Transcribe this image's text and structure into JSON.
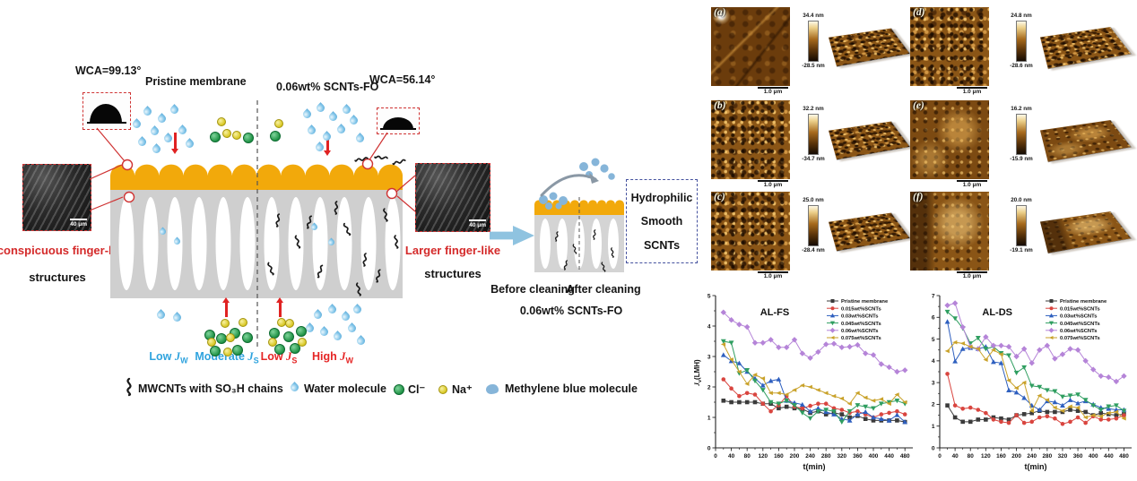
{
  "diagram": {
    "wca_left": "WCA=99.13°",
    "wca_right": "WCA=56.14°",
    "pristine_label": "Pristine membrane",
    "modified_label": "0.06wt% SCNTs-FO",
    "left_inset_scale": "40 μm",
    "right_inset_scale": "40 μm",
    "left_structure_line1": "Inconspicuous finger-like",
    "left_structure_line2": "structures",
    "right_structure_line1": "Larger finger-like",
    "right_structure_line2": "structures",
    "flux_labels": [
      {
        "main": "Low ",
        "var": "J",
        "sub": "W"
      },
      {
        "main": "Moderate ",
        "var": "J",
        "sub": "S"
      },
      {
        "main": "Low ",
        "var": "J",
        "sub": "S"
      },
      {
        "main": "High ",
        "var": "J",
        "sub": "W"
      }
    ],
    "molecule_legend": [
      {
        "label": "MWCNTs with SO₃H chains"
      },
      {
        "label": "Water molecule"
      },
      {
        "label": "Cl⁻"
      },
      {
        "label": "Na⁺"
      },
      {
        "label": "Methylene blue molecule"
      }
    ],
    "cleaning": {
      "before": "Before cleaning",
      "after": "After cleaning",
      "membrane_label": "0.06wt% SCNTs-FO",
      "box_lines": [
        "Hydrophilic",
        "Smooth",
        "SCNTs"
      ]
    }
  },
  "afm_panels": [
    {
      "id": "(a)",
      "zmax": "34.4 nm",
      "zmin": "-28.5 nm",
      "scalebar": "1.0 μm"
    },
    {
      "id": "(b)",
      "zmax": "32.2 nm",
      "zmin": "-34.7 nm",
      "scalebar": "1.0 μm"
    },
    {
      "id": "(c)",
      "zmax": "25.0 nm",
      "zmin": "-28.4 nm",
      "scalebar": "1.0 μm"
    },
    {
      "id": "(d)",
      "zmax": "24.8 nm",
      "zmin": "-28.6 nm",
      "scalebar": "1.0 μm"
    },
    {
      "id": "(e)",
      "zmax": "16.2 nm",
      "zmin": "-15.9 nm",
      "scalebar": "1.0 μm"
    },
    {
      "id": "(f)",
      "zmax": "20.0 nm",
      "zmin": "-19.1 nm",
      "scalebar": "1.0 μm"
    }
  ],
  "chart_data": [
    {
      "type": "line",
      "title": "AL-FS",
      "xlabel": "t(min)",
      "ylabel": "Jv(LMH)",
      "ylabel_parts": {
        "lead": "J",
        "sub": "v",
        "rest": "(LMH)"
      },
      "xlim": [
        0,
        500
      ],
      "ylim": [
        0,
        5
      ],
      "yticks": [
        0,
        1,
        2,
        3,
        4,
        5
      ],
      "xticks": [
        0,
        40,
        80,
        120,
        160,
        200,
        240,
        280,
        320,
        360,
        400,
        440,
        480
      ],
      "grid": false,
      "legend_position": "top-right",
      "x": [
        20,
        40,
        60,
        80,
        100,
        120,
        140,
        160,
        180,
        200,
        220,
        240,
        260,
        280,
        300,
        320,
        340,
        360,
        380,
        400,
        420,
        440,
        460,
        480
      ],
      "series": [
        {
          "name": "Pristine membrane",
          "color": "#3b3b3b",
          "marker": "square",
          "values": [
            1.55,
            1.5,
            1.5,
            1.5,
            1.5,
            1.45,
            1.45,
            1.3,
            1.35,
            1.3,
            1.28,
            1.15,
            1.2,
            1.1,
            1.15,
            1.1,
            1.0,
            1.05,
            0.95,
            0.9,
            0.9,
            0.9,
            0.9,
            0.85
          ]
        },
        {
          "name": "0.015wt%SCNTs",
          "color": "#d9453f",
          "marker": "circle",
          "values": [
            2.25,
            1.95,
            1.7,
            1.8,
            1.75,
            1.45,
            1.2,
            1.4,
            1.7,
            1.35,
            1.3,
            1.38,
            1.45,
            1.45,
            1.3,
            1.25,
            1.15,
            1.2,
            1.1,
            1.0,
            1.1,
            1.15,
            1.2,
            1.1
          ]
        },
        {
          "name": "0.03wt%SCNTs",
          "color": "#2e5fbf",
          "marker": "triangle-up",
          "values": [
            3.05,
            2.85,
            2.78,
            2.5,
            2.28,
            2.05,
            2.2,
            2.25,
            1.55,
            1.48,
            1.42,
            1.2,
            1.3,
            1.18,
            1.1,
            0.95,
            0.9,
            1.1,
            1.18,
            1.0,
            0.95,
            0.9,
            1.08,
            0.85
          ]
        },
        {
          "name": "0.045wt%SCNTs",
          "color": "#2f9e60",
          "marker": "triangle-down",
          "values": [
            3.5,
            3.45,
            2.45,
            2.55,
            2.2,
            1.9,
            1.5,
            1.45,
            1.55,
            1.4,
            1.15,
            0.97,
            1.2,
            1.25,
            1.2,
            0.85,
            1.2,
            1.4,
            1.35,
            1.3,
            1.45,
            1.5,
            1.55,
            1.45
          ]
        },
        {
          "name": "0.06wt%SCNTs",
          "color": "#b584d8",
          "marker": "diamond",
          "values": [
            4.45,
            4.2,
            4.05,
            3.97,
            3.45,
            3.45,
            3.55,
            3.3,
            3.3,
            3.55,
            3.1,
            2.95,
            3.15,
            3.4,
            3.42,
            3.3,
            3.32,
            3.38,
            3.1,
            3.05,
            2.75,
            2.65,
            2.5,
            2.55
          ]
        },
        {
          "name": "0.075wt%SCNTs",
          "color": "#c9a22a",
          "marker": "triangle-left",
          "values": [
            3.4,
            2.9,
            2.5,
            2.1,
            2.4,
            2.28,
            1.8,
            1.8,
            1.75,
            1.9,
            2.05,
            2.0,
            1.9,
            1.8,
            1.7,
            1.62,
            1.45,
            1.8,
            1.65,
            1.55,
            1.6,
            1.45,
            1.75,
            1.5
          ]
        }
      ]
    },
    {
      "type": "line",
      "title": "AL-DS",
      "xlabel": "t(min)",
      "ylabel": "",
      "xlim": [
        0,
        500
      ],
      "ylim": [
        0,
        7
      ],
      "yticks": [
        0,
        1,
        2,
        3,
        4,
        5,
        6,
        7
      ],
      "xticks": [
        0,
        40,
        80,
        120,
        160,
        200,
        240,
        280,
        320,
        360,
        400,
        440,
        480
      ],
      "grid": false,
      "legend_position": "top-right",
      "x": [
        20,
        40,
        60,
        80,
        100,
        120,
        140,
        160,
        180,
        200,
        220,
        240,
        260,
        280,
        300,
        320,
        340,
        360,
        380,
        400,
        420,
        440,
        460,
        480
      ],
      "series": [
        {
          "name": "Pristine membrane",
          "color": "#3b3b3b",
          "marker": "square",
          "values": [
            1.95,
            1.4,
            1.2,
            1.2,
            1.3,
            1.3,
            1.4,
            1.35,
            1.3,
            1.5,
            1.55,
            1.6,
            1.7,
            1.65,
            1.65,
            1.65,
            1.75,
            1.7,
            1.65,
            1.5,
            1.6,
            1.55,
            1.5,
            1.55
          ]
        },
        {
          "name": "0.015wt%SCNTs",
          "color": "#d9453f",
          "marker": "circle",
          "values": [
            3.4,
            1.95,
            1.8,
            1.85,
            1.75,
            1.6,
            1.3,
            1.2,
            1.15,
            1.5,
            1.15,
            1.2,
            1.4,
            1.45,
            1.35,
            1.1,
            1.2,
            1.4,
            1.15,
            1.45,
            1.3,
            1.3,
            1.35,
            1.5
          ]
        },
        {
          "name": "0.03wt%SCNTs",
          "color": "#2e5fbf",
          "marker": "triangle-up",
          "values": [
            5.8,
            3.98,
            4.55,
            4.6,
            4.55,
            4.65,
            3.95,
            3.9,
            2.65,
            2.55,
            2.3,
            1.95,
            1.75,
            2.15,
            2.1,
            1.95,
            2.2,
            2.05,
            2.15,
            2.0,
            1.85,
            1.8,
            1.75,
            1.75
          ]
        },
        {
          "name": "0.045wt%SCNTs",
          "color": "#2f9e60",
          "marker": "triangle-down",
          "values": [
            6.25,
            5.95,
            5.5,
            4.8,
            5.05,
            4.55,
            4.65,
            4.35,
            4.25,
            3.45,
            3.7,
            2.85,
            2.8,
            2.65,
            2.6,
            2.35,
            2.4,
            2.45,
            2.2,
            1.95,
            1.75,
            1.9,
            1.95,
            1.7
          ]
        },
        {
          "name": "0.06wt%SCNTs",
          "color": "#b584d8",
          "marker": "diamond",
          "values": [
            6.55,
            6.65,
            5.55,
            4.65,
            4.55,
            5.1,
            4.7,
            4.7,
            4.65,
            4.2,
            4.55,
            3.9,
            4.5,
            4.7,
            4.1,
            4.3,
            4.55,
            4.5,
            4.0,
            3.6,
            3.3,
            3.25,
            3.05,
            3.3
          ]
        },
        {
          "name": "0.075wt%SCNTs",
          "color": "#c9a22a",
          "marker": "triangle-left",
          "values": [
            4.45,
            4.85,
            4.8,
            4.65,
            4.55,
            4.05,
            4.5,
            4.3,
            3.1,
            2.75,
            3.0,
            1.7,
            2.4,
            2.2,
            1.85,
            1.7,
            1.9,
            1.85,
            1.4,
            1.5,
            1.45,
            1.6,
            1.65,
            1.35
          ]
        }
      ]
    }
  ],
  "colors": {
    "membrane-yellow": "#f2a90b",
    "support-gray": "#cfcfcf",
    "water-blue": "#7ec3e8",
    "chloride-green": "#1f9245",
    "sodium-yellow": "#d8c722",
    "methylene-blue": "#86b5d9",
    "arrow-red": "#e02222",
    "label-red": "#d42a2a",
    "label-blue": "#2fa3de",
    "inset-border-red": "#cf3333",
    "hydro-box-blue": "#44519e",
    "block-arrow-blue": "#8fc3e0",
    "afm-base-brown": "#8a5516"
  }
}
